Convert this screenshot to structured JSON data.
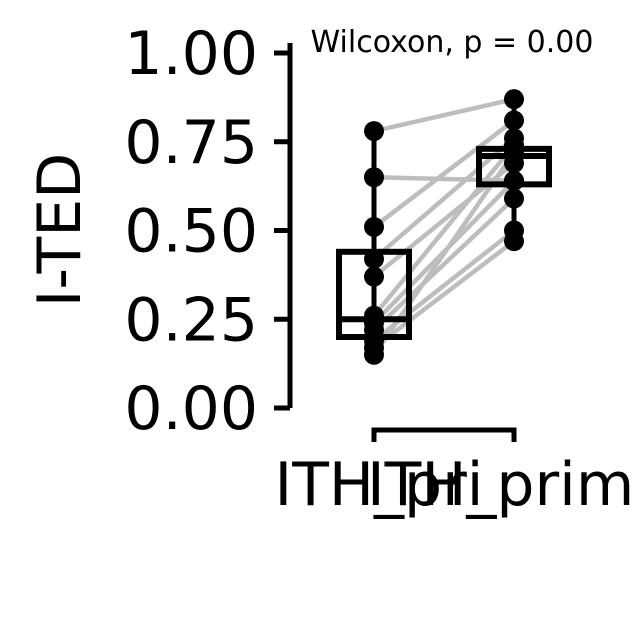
{
  "chart_data": {
    "type": "box-paired",
    "ylabel": "I-TED",
    "ylim": [
      0,
      1
    ],
    "yticks": [
      0.0,
      0.25,
      0.5,
      0.75,
      1.0
    ],
    "ytick_labels": [
      "0.00",
      "0.25",
      "0.50",
      "0.75",
      "1.00"
    ],
    "categories": [
      "ITH_pri",
      "ITH_primo"
    ],
    "annotation": "Wilcoxon, p = 0.00",
    "colors": {
      "box": "#000000",
      "points": "#000000",
      "pair_lines": "#bdbdbd"
    },
    "boxes": [
      {
        "category": "ITH_pri",
        "q1": 0.2,
        "median": 0.25,
        "q3": 0.44
      },
      {
        "category": "ITH_primo",
        "q1": 0.63,
        "median": 0.71,
        "q3": 0.73
      }
    ],
    "pairs": [
      [
        0.78,
        0.87
      ],
      [
        0.65,
        0.64
      ],
      [
        0.51,
        0.81
      ],
      [
        0.42,
        0.76
      ],
      [
        0.37,
        0.69
      ],
      [
        0.26,
        0.74
      ],
      [
        0.24,
        0.64
      ],
      [
        0.22,
        0.59
      ],
      [
        0.19,
        0.5
      ],
      [
        0.17,
        0.47
      ],
      [
        0.15,
        0.72
      ]
    ]
  }
}
